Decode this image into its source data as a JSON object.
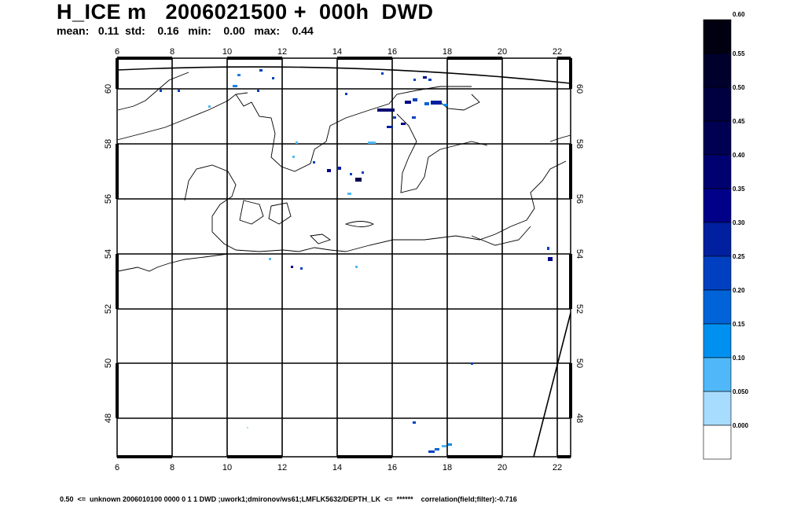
{
  "header": {
    "title": "H_ICE m   2006021500 +  000h  DWD",
    "stats": "mean:   0.11  std:    0.16   min:    0.00   max:    0.44"
  },
  "map": {
    "lon_ticks": [
      "6",
      "8",
      "10",
      "12",
      "14",
      "16",
      "18",
      "20",
      "22"
    ],
    "lat_ticks": [
      "48",
      "50",
      "52",
      "54",
      "56",
      "58",
      "60"
    ]
  },
  "colorbar": {
    "labels": [
      "0.60",
      "0.55",
      "0.50",
      "0.45",
      "0.40",
      "0.35",
      "0.30",
      "0.25",
      "0.20",
      "0.15",
      "0.10",
      "0.050",
      "0.000"
    ],
    "colors": [
      "#000010",
      "#00002c",
      "#000040",
      "#000052",
      "#000070",
      "#000088",
      "#0020a0",
      "#0040c0",
      "#0064d8",
      "#0090f0",
      "#50b8f8",
      "#a8dcff",
      "#ffffff"
    ]
  },
  "footer": "0.50  <=  unknown 2006010100 0000 0 1 1 DWD ;uwork1;dmironov/ws61;LMFLK5632/DEPTH_LK  <=  ******    correlation(field;filter):-0.716"
}
